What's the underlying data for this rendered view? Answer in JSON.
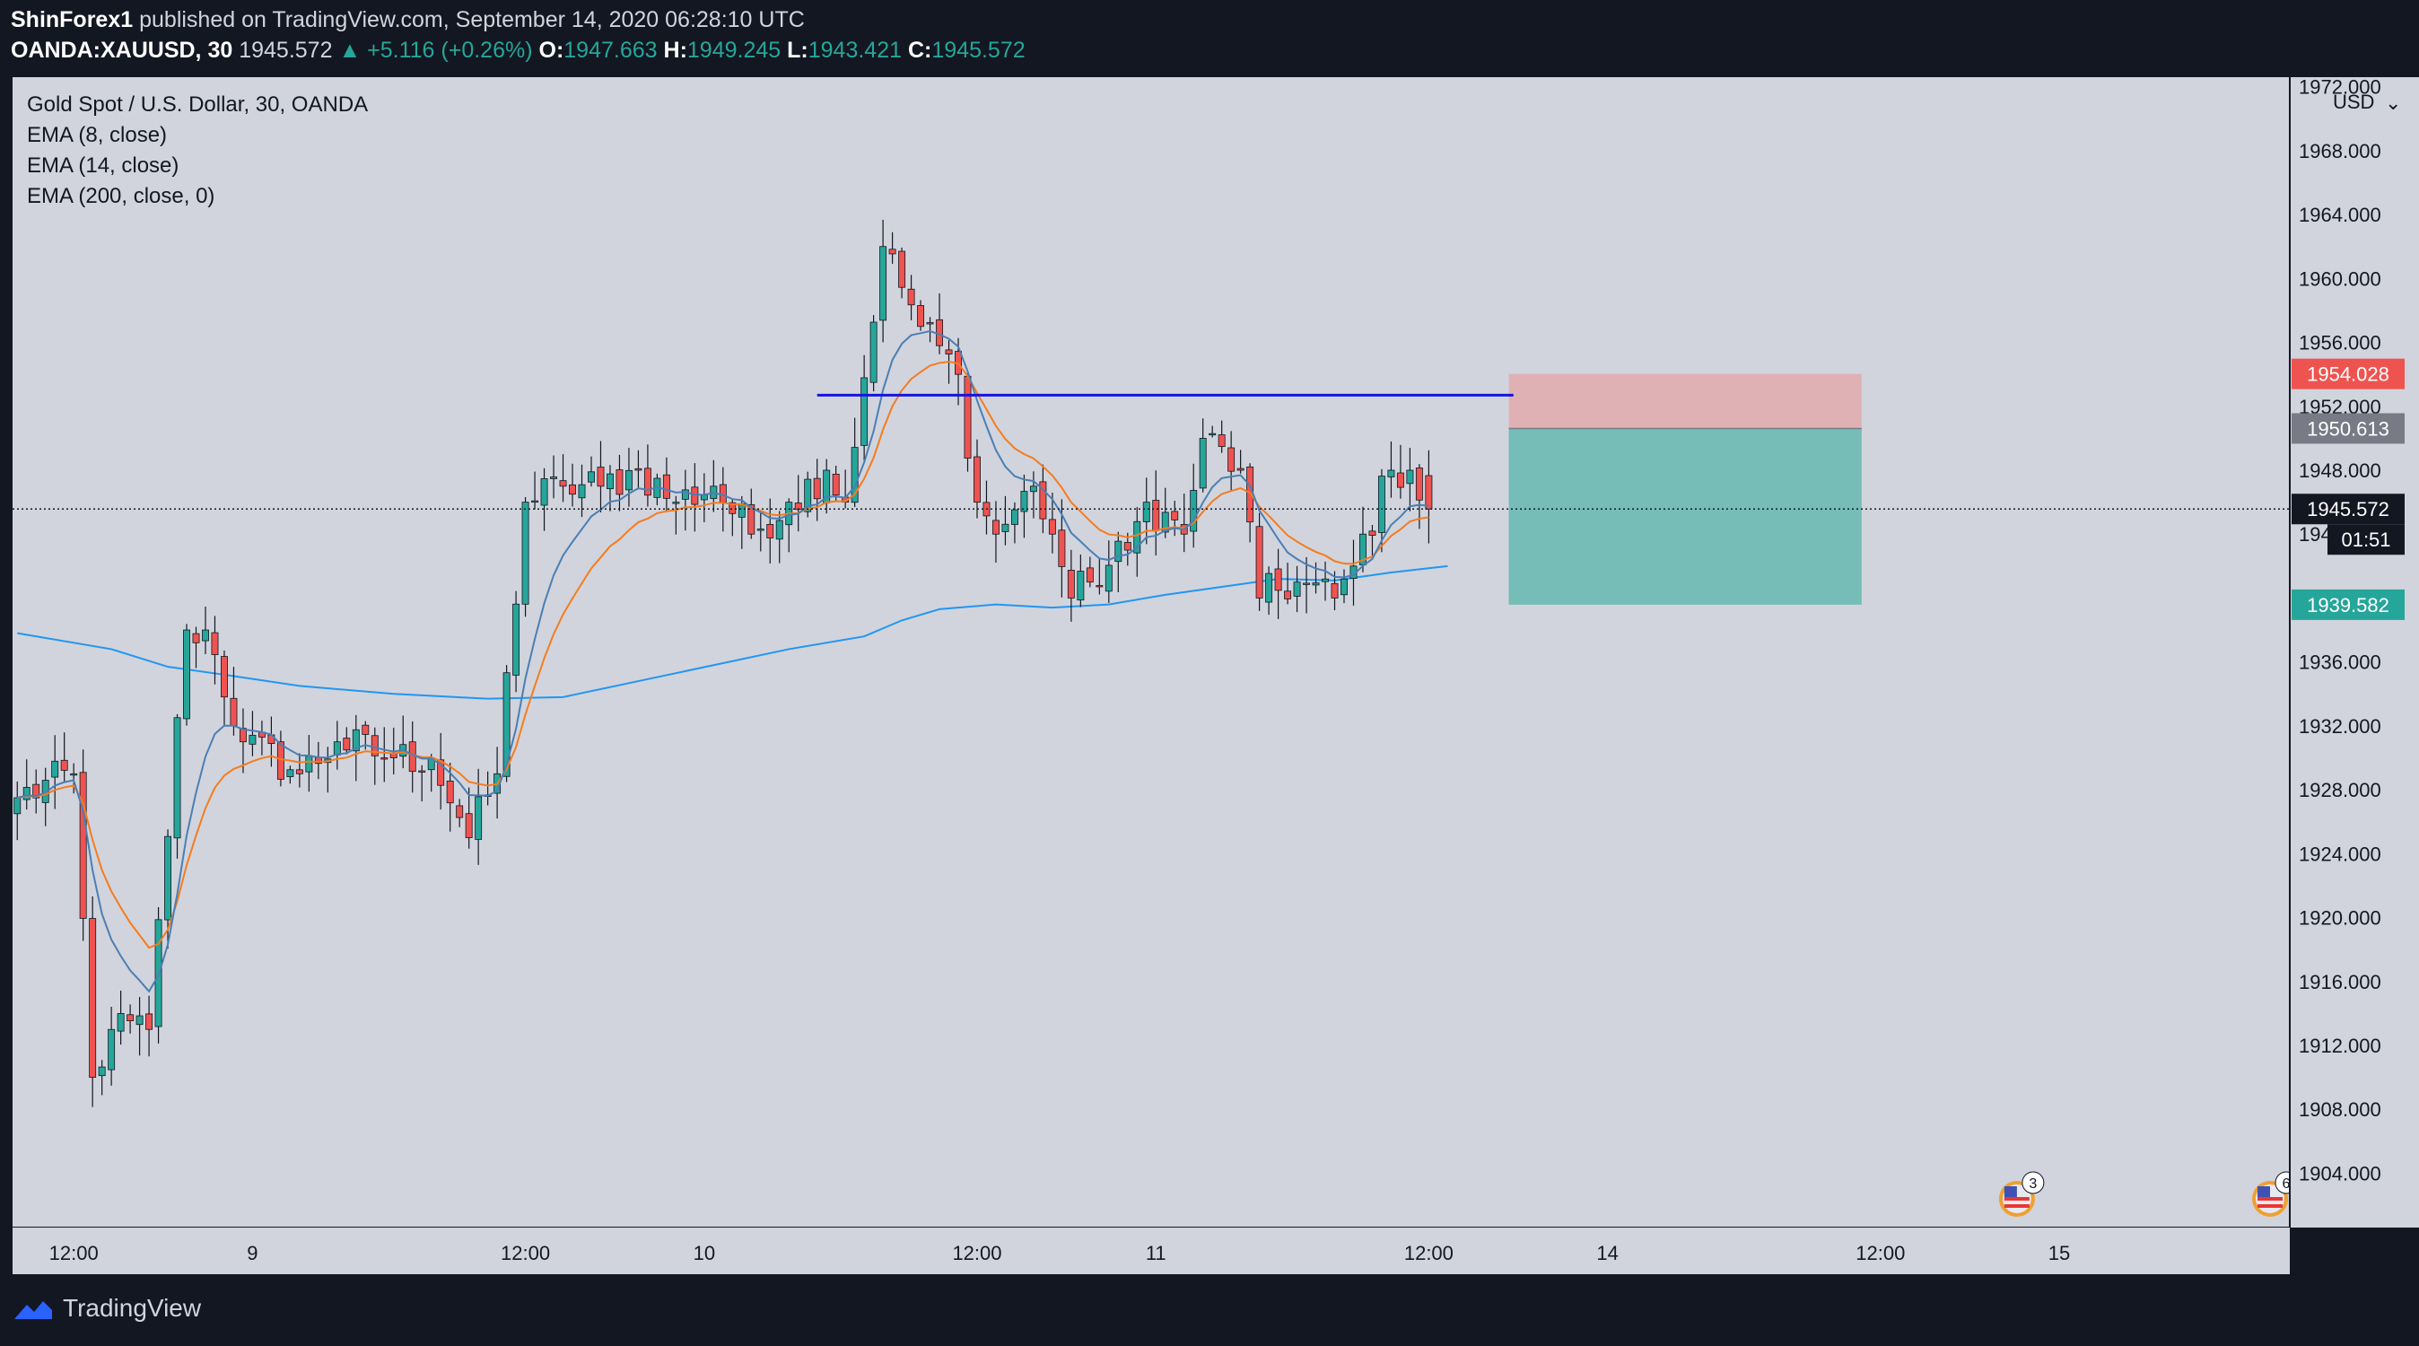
{
  "header": {
    "author": "ShinForex1",
    "published_text": "published on TradingView.com, September 14, 2020 06:28:10 UTC",
    "symbol": "OANDA:XAUUSD, 30",
    "last": "1945.572",
    "change": "+5.116 (+0.26%)",
    "o_label": "O:",
    "o": "1947.663",
    "h_label": "H:",
    "h": "1949.245",
    "l_label": "L:",
    "l": "1943.421",
    "c_label": "C:",
    "c": "1945.572"
  },
  "legend": {
    "title": "Gold Spot / U.S. Dollar, 30, OANDA",
    "ema1": "EMA (8, close)",
    "ema2": "EMA (14, close)",
    "ema3": "EMA (200, close, 0)"
  },
  "footer": {
    "brand": "TradingView"
  },
  "colors": {
    "background": "#d1d4dc",
    "bull": "#26a69a",
    "bear": "#ef5350",
    "ema8": "#4a7fb5",
    "ema14": "#f57c1f",
    "ema200": "#2196f3",
    "resistance": "#1515e0",
    "stop_zone": "#e0b1b4",
    "target_zone": "#75bdb6"
  },
  "event_markers": [
    {
      "icon": "us-flag-icon",
      "count": "3"
    },
    {
      "icon": "us-flag-icon",
      "count": "6"
    }
  ],
  "chart_data": {
    "type": "candlestick",
    "currency": "USD",
    "timeframe_minutes": 30,
    "x_labels": [
      "12:00",
      "9",
      "12:00",
      "10",
      "12:00",
      "11",
      "12:00",
      "14",
      "12:00",
      "15",
      "12:00"
    ],
    "x_label_bars": [
      6,
      25,
      54,
      73,
      102,
      121,
      150,
      169,
      198,
      217,
      246
    ],
    "y_ticks": [
      1904,
      1908,
      1912,
      1916,
      1920,
      1924,
      1928,
      1932,
      1936,
      1940,
      1944,
      1948,
      1952,
      1956,
      1960,
      1964,
      1968,
      1972
    ],
    "y_tick_labels": [
      "1904.000",
      "1908.000",
      "1912.000",
      "1916.000",
      "1920.000",
      "1924.000",
      "1928.000",
      "1932.000",
      "1936.000",
      "1940.000",
      "1944.000",
      "1948.000",
      "1952.000",
      "1956.000",
      "1960.000",
      "1964.000",
      "1968.000",
      "1972.000"
    ],
    "ylim": [
      1900.6,
      1972.6
    ],
    "xlim_bars": [
      -0.5,
      241.5
    ],
    "ohlc_anchors": [
      [
        0,
        1927.5
      ],
      [
        6,
        1929
      ],
      [
        8,
        1910
      ],
      [
        10,
        1913
      ],
      [
        14,
        1913
      ],
      [
        18,
        1938
      ],
      [
        20,
        1938
      ],
      [
        24,
        1931
      ],
      [
        30,
        1929
      ],
      [
        34,
        1931
      ],
      [
        40,
        1930
      ],
      [
        44,
        1930
      ],
      [
        48,
        1925
      ],
      [
        51,
        1929
      ],
      [
        54,
        1946
      ],
      [
        58,
        1947
      ],
      [
        62,
        1947
      ],
      [
        66,
        1948
      ],
      [
        70,
        1946
      ],
      [
        74,
        1947
      ],
      [
        78,
        1944
      ],
      [
        82,
        1946
      ],
      [
        86,
        1948
      ],
      [
        88,
        1946
      ],
      [
        92,
        1962
      ],
      [
        96,
        1957
      ],
      [
        100,
        1954
      ],
      [
        102,
        1946
      ],
      [
        104,
        1944
      ],
      [
        108,
        1947
      ],
      [
        110,
        1944
      ],
      [
        112,
        1940
      ],
      [
        114,
        1941
      ],
      [
        118,
        1943
      ],
      [
        120,
        1946
      ],
      [
        124,
        1944
      ],
      [
        126,
        1950
      ],
      [
        130,
        1948
      ],
      [
        132,
        1940
      ],
      [
        136,
        1941
      ],
      [
        140,
        1940
      ],
      [
        142,
        1942
      ],
      [
        146,
        1948
      ],
      [
        148,
        1948
      ],
      [
        150,
        1945.6
      ]
    ],
    "ema200_points": [
      [
        0,
        1937.8
      ],
      [
        10,
        1936.8
      ],
      [
        16,
        1935.7
      ],
      [
        22,
        1935.2
      ],
      [
        30,
        1934.5
      ],
      [
        40,
        1934.0
      ],
      [
        50,
        1933.7
      ],
      [
        58,
        1933.8
      ],
      [
        66,
        1934.8
      ],
      [
        74,
        1935.8
      ],
      [
        82,
        1936.8
      ],
      [
        90,
        1937.6
      ],
      [
        94,
        1938.6
      ],
      [
        98,
        1939.3
      ],
      [
        104,
        1939.6
      ],
      [
        110,
        1939.4
      ],
      [
        116,
        1939.6
      ],
      [
        122,
        1940.2
      ],
      [
        128,
        1940.7
      ],
      [
        134,
        1941.2
      ],
      [
        140,
        1941.1
      ],
      [
        146,
        1941.6
      ],
      [
        152,
        1942.0
      ]
    ],
    "resistance_level": 1952.7,
    "resistance_bar_range": [
      85,
      159
    ],
    "position": {
      "type": "short",
      "bar_range": [
        158.5,
        196
      ],
      "entry": 1950.613,
      "stop": 1954.028,
      "target": 1939.582
    },
    "price_labels": [
      {
        "value": "1954.028",
        "price": 1954.028,
        "bg": "#ef5350"
      },
      {
        "value": "1950.613",
        "price": 1950.613,
        "bg": "#787b86"
      },
      {
        "value": "1945.572",
        "price": 1945.572,
        "bg": "#131722",
        "sub": "01:51"
      },
      {
        "value": "1939.582",
        "price": 1939.582,
        "bg": "#26a69a"
      }
    ],
    "last_price": 1945.572
  }
}
